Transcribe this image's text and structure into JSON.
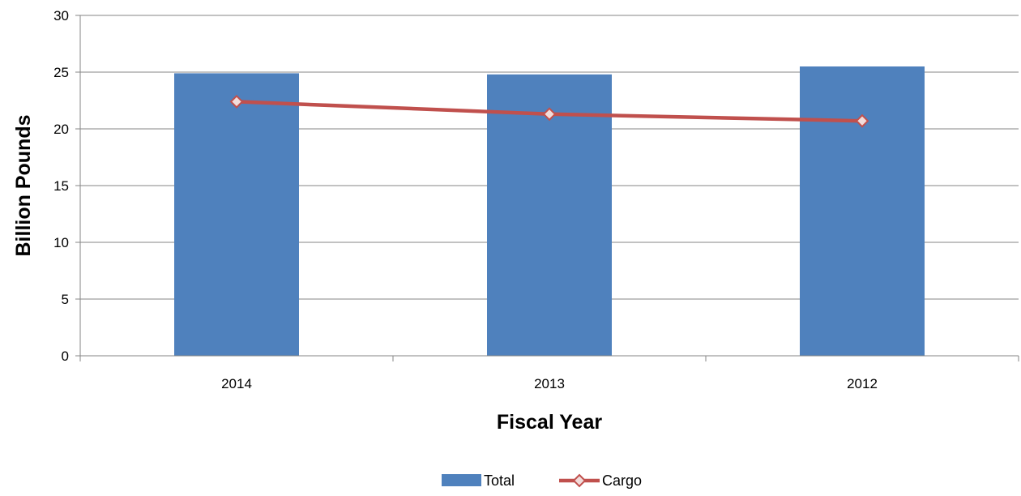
{
  "chart_data": {
    "type": "bar",
    "categories": [
      "2014",
      "2013",
      "2012"
    ],
    "series": [
      {
        "name": "Total",
        "type": "bar",
        "color": "#4F81BD",
        "values": [
          24.9,
          24.8,
          25.5
        ]
      },
      {
        "name": "Cargo",
        "type": "line",
        "color": "#C0504D",
        "marker": "diamond",
        "values": [
          22.4,
          21.3,
          20.7
        ]
      }
    ],
    "title": "",
    "xlabel": "Fiscal Year",
    "ylabel": "Billion Pounds",
    "ylim": [
      0,
      30
    ],
    "yticks": [
      0,
      5,
      10,
      15,
      20,
      25,
      30
    ],
    "grid": "horizontal",
    "legend": "bottom"
  }
}
